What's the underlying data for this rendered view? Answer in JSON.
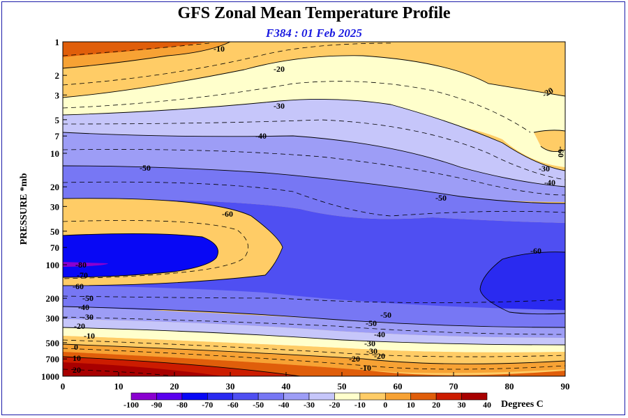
{
  "chart_data": {
    "type": "heatmap",
    "title": "GFS Zonal Mean Temperature Profile",
    "subtitle": "F384 : 01 Feb 2025",
    "xlabel": "",
    "ylabel": "PRESSURE *mb",
    "x_ticks": [
      0,
      10,
      20,
      30,
      40,
      50,
      60,
      70,
      80,
      90
    ],
    "xlim": [
      0,
      90
    ],
    "y_scale": "log",
    "y_ticks": [
      1,
      2,
      3,
      5,
      7,
      10,
      20,
      30,
      50,
      70,
      100,
      200,
      300,
      500,
      700,
      1000
    ],
    "ylim": [
      1000,
      1
    ],
    "colorbar": {
      "label": "Degrees C",
      "levels": [
        -100,
        -90,
        -80,
        -70,
        -60,
        -50,
        -40,
        -30,
        -20,
        -10,
        0,
        10,
        20,
        30,
        40
      ],
      "colors": [
        "#8a00d0",
        "#5a00ee",
        "#0808f5",
        "#2a2af0",
        "#4f4ff2",
        "#7777f4",
        "#9d9df6",
        "#c6c6fa",
        "#ffffcc",
        "#ffcc66",
        "#f7a234",
        "#e05e0a",
        "#cc1c00",
        "#a80000",
        "#806020"
      ]
    },
    "contour_labels": [
      "-10",
      "-20",
      "-30",
      "-40",
      "-50",
      "-50",
      "-60",
      "-60",
      "-80",
      "-70",
      "-60",
      "-50",
      "-40",
      "-30",
      "-20",
      "-10",
      "0",
      "10",
      "20",
      "-20",
      "-30",
      "-40",
      "-50",
      "-30",
      "-20",
      "-10",
      "-20",
      "-30",
      "-40",
      "-50",
      "-60"
    ]
  }
}
